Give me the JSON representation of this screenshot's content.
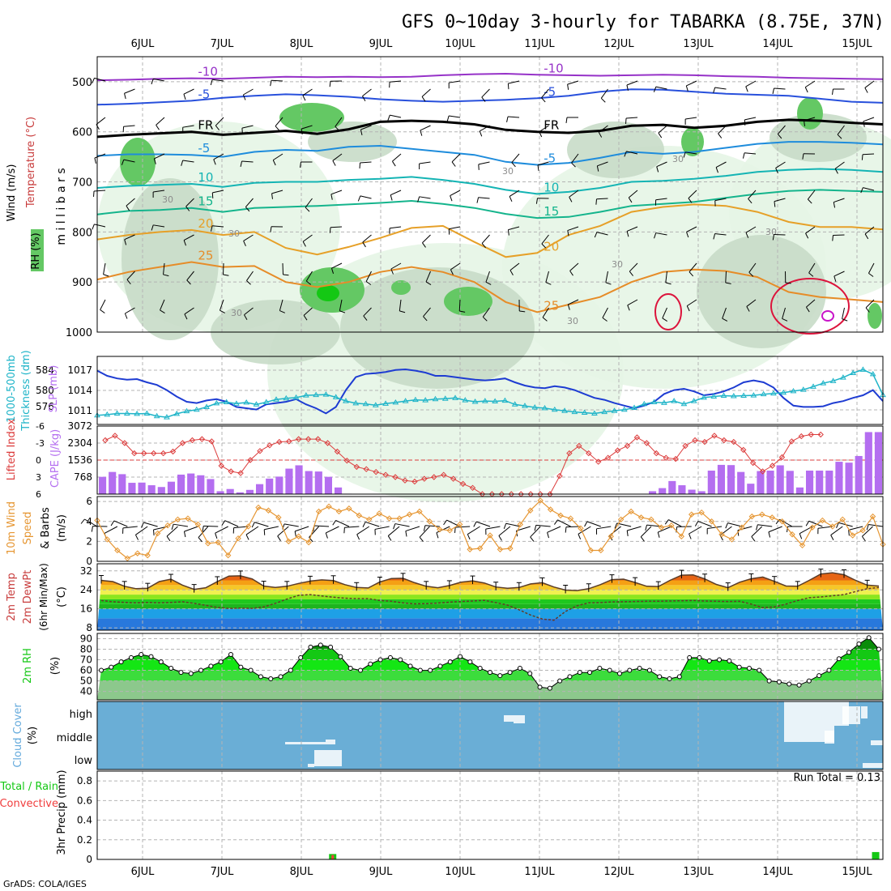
{
  "page": {
    "title": "GFS 0~10day 3-hourly for TABARKA (8.75E, 37N)",
    "footer": "GrADS: COLA/IGES"
  },
  "colors": {
    "grid": "#b4b4b4",
    "rh_light": "#e6f5e6",
    "rh_mid": "#c8dcc8",
    "rh_green": "#64c864",
    "rh_bright": "#14c814",
    "slp": "#1e3cd2",
    "thickness": "#1eb4c8",
    "lifted_index": "#dc3c3c",
    "cape": "#b46ef0",
    "wind10m": "#e69632",
    "rh2m": "#14c814",
    "cloud": "#6aaed6",
    "precip_total": "#14c814",
    "precip_conv": "#f03c3c"
  },
  "chart_data": [
    {
      "type": "contour-timeheight",
      "panel": "upper-air",
      "ylabel_parts": [
        "Wind (m/s)",
        "Temperature (°C)",
        "RH (%)"
      ],
      "yaxis_title": "m i l l i b a r s",
      "y_ticks": [
        500,
        600,
        700,
        800,
        900,
        1000
      ],
      "ylim": [
        1000,
        450
      ],
      "x_dates_top": [
        "6JUL",
        "7JUL",
        "8JUL",
        "9JUL",
        "10JUL",
        "11JUL",
        "12JUL",
        "13JUL",
        "14JUL",
        "15JUL"
      ],
      "temperature_contours": [
        {
          "label": "-10",
          "color": "#9632c8",
          "pressure": [
            497,
            496,
            494,
            493,
            494,
            492,
            490,
            491,
            490,
            491,
            490,
            487,
            485,
            484,
            486,
            487,
            488,
            487,
            486,
            487,
            489,
            490,
            492,
            493,
            494,
            495
          ]
        },
        {
          "label": "-5",
          "color": "#2850dc",
          "pressure": [
            546,
            544,
            541,
            538,
            532,
            528,
            525,
            527,
            530,
            535,
            538,
            540,
            538,
            536,
            533,
            528,
            520,
            515,
            516,
            520,
            524,
            526,
            528,
            534,
            540,
            542
          ]
        },
        {
          "label": "FR",
          "color": "#000000",
          "pressure": [
            610,
            606,
            603,
            600,
            606,
            602,
            598,
            604,
            595,
            580,
            578,
            580,
            585,
            596,
            600,
            602,
            598,
            588,
            586,
            592,
            588,
            580,
            576,
            578,
            582,
            585
          ]
        },
        {
          "label": "-5",
          "color": "#1e8cdc",
          "pressure": [
            648,
            645,
            645,
            646,
            650,
            640,
            636,
            638,
            630,
            628,
            634,
            640,
            646,
            660,
            666,
            662,
            652,
            640,
            644,
            640,
            632,
            624,
            620,
            620,
            622,
            625
          ]
        },
        {
          "label": "10",
          "color": "#14b4b4",
          "pressure": [
            712,
            708,
            706,
            704,
            710,
            702,
            700,
            700,
            696,
            694,
            690,
            696,
            704,
            716,
            724,
            720,
            712,
            700,
            698,
            694,
            688,
            680,
            676,
            674,
            676,
            680
          ]
        },
        {
          "label": "15",
          "color": "#14b48c",
          "pressure": [
            765,
            758,
            756,
            752,
            760,
            752,
            750,
            748,
            745,
            742,
            738,
            744,
            752,
            764,
            772,
            770,
            760,
            748,
            744,
            740,
            732,
            724,
            718,
            716,
            718,
            720
          ]
        },
        {
          "label": "20",
          "color": "#e6a028",
          "pressure": [
            815,
            806,
            800,
            796,
            806,
            800,
            832,
            845,
            830,
            812,
            792,
            788,
            820,
            850,
            842,
            806,
            788,
            760,
            750,
            745,
            748,
            760,
            780,
            790,
            790,
            795
          ]
        },
        {
          "label": "25",
          "color": "#e68c28",
          "pressure": [
            895,
            880,
            870,
            860,
            870,
            868,
            900,
            910,
            900,
            880,
            870,
            880,
            900,
            940,
            960,
            945,
            930,
            900,
            880,
            875,
            878,
            890,
            920,
            930,
            935,
            940
          ]
        }
      ],
      "rh_labels": [
        "30",
        "30",
        "30",
        "30",
        "30",
        "30",
        "30",
        "30"
      ]
    },
    {
      "type": "line",
      "panel": "slp-thickness",
      "ylabel_left": "1000-500mb Thickness (dm)",
      "ylabel_right": "SLP (mb)",
      "left_ticks": [
        "584",
        "580",
        "576"
      ],
      "right_ticks": [
        "1017",
        "1014",
        "1011"
      ],
      "series": [
        {
          "name": "SLP",
          "axis": "right",
          "ylim": [
            1008.5,
            1019
          ],
          "values": [
            1016.8,
            1016.0,
            1015.6,
            1015.4,
            1015.5,
            1015.0,
            1014.6,
            1013.8,
            1012.8,
            1012.0,
            1011.8,
            1012.2,
            1012.4,
            1012.0,
            1011.2,
            1011.0,
            1010.8,
            1011.6,
            1011.8,
            1012.0,
            1012.4,
            1011.6,
            1011.0,
            1010.2,
            1011.2,
            1013.8,
            1015.8,
            1016.3,
            1016.4,
            1016.6,
            1016.9,
            1017.0,
            1016.8,
            1016.5,
            1016.0,
            1016.0,
            1015.8,
            1015.6,
            1015.4,
            1015.3,
            1015.4,
            1015.6,
            1015.0,
            1014.5,
            1014.2,
            1014.1,
            1014.4,
            1014.2,
            1013.8,
            1013.2,
            1012.6,
            1012.3,
            1011.8,
            1011.4,
            1011.0,
            1011.4,
            1012.0,
            1013.2,
            1013.8,
            1014.0,
            1013.6,
            1013.0,
            1013.2,
            1013.6,
            1014.2,
            1015.0,
            1015.3,
            1015.0,
            1014.2,
            1012.6,
            1011.4,
            1011.2,
            1011.2,
            1011.3,
            1011.8,
            1012.1,
            1012.6,
            1013.0,
            1013.8,
            1012.1
          ]
        },
        {
          "name": "Thickness",
          "axis": "left",
          "ylim": [
            571,
            589
          ],
          "values": [
            573.4,
            573.6,
            573.9,
            573.9,
            573.8,
            573.9,
            573.2,
            572.9,
            573.8,
            574.5,
            574.9,
            575.6,
            576.6,
            576.9,
            576.5,
            576.8,
            576.3,
            576.9,
            577.6,
            577.9,
            578.1,
            578.7,
            578.8,
            578.9,
            578.2,
            577.2,
            576.6,
            576.4,
            576.1,
            576.5,
            576.8,
            577.2,
            577.5,
            577.4,
            577.7,
            577.8,
            578.0,
            577.4,
            577.0,
            577.2,
            577.1,
            577.3,
            576.3,
            575.9,
            575.5,
            575.3,
            574.9,
            574.6,
            574.3,
            574.1,
            573.9,
            574.3,
            574.6,
            574.9,
            575.4,
            576.4,
            576.9,
            576.7,
            577.2,
            576.4,
            577.2,
            578.1,
            578.4,
            578.6,
            578.5,
            578.6,
            578.7,
            579.0,
            579.2,
            579.4,
            579.8,
            580.2,
            581.0,
            581.9,
            582.5,
            583.4,
            584.6,
            585.5,
            584.3,
            578.8
          ]
        }
      ]
    },
    {
      "type": "bar+line",
      "panel": "lifted-index-cape",
      "ylabel_left": "Lifted Index",
      "ylabel_right": "CAPE (J/kg)",
      "left_ticks": [
        "-6",
        "-3",
        "0",
        "3",
        "6"
      ],
      "right_ticks": [
        "3072",
        "2304",
        "1536",
        "768"
      ],
      "lifted_index": [
        -3.5,
        -4.3,
        -3.0,
        -1.2,
        -1.2,
        -1.2,
        -1.2,
        -1.5,
        -3.0,
        -3.5,
        -3.7,
        -3.3,
        1.0,
        2.0,
        2.3,
        0.0,
        -1.6,
        -2.6,
        -3.2,
        -3.3,
        -3.7,
        -3.7,
        -3.7,
        -3.0,
        -1.5,
        0.1,
        1.2,
        1.6,
        2.1,
        2.6,
        3.0,
        3.6,
        3.8,
        3.3,
        3.0,
        2.6,
        3.3,
        4.2,
        4.9,
        6.0,
        6.0,
        6.0,
        6.0,
        6.0,
        6.0,
        6.0,
        6.0,
        2.8,
        -1.2,
        -2.5,
        -1.2,
        0.3,
        -0.4,
        -1.7,
        -2.5,
        -4.0,
        -3.0,
        -1.2,
        -0.4,
        -0.2,
        -2.5,
        -3.5,
        -3.2,
        -4.3,
        -3.5,
        -3.2,
        -1.8,
        0.5,
        2.0,
        1.0,
        -0.5,
        -3.3,
        -4.2,
        -4.5,
        -4.5
      ],
      "cape": [
        780,
        1000,
        900,
        510,
        520,
        400,
        320,
        560,
        880,
        930,
        850,
        680,
        130,
        230,
        80,
        190,
        450,
        700,
        790,
        1150,
        1300,
        1040,
        1020,
        780,
        300,
        20,
        0,
        0,
        0,
        0,
        0,
        0,
        0,
        0,
        0,
        0,
        0,
        0,
        0,
        0,
        0,
        0,
        0,
        0,
        0,
        0,
        0,
        0,
        0,
        0,
        0,
        0,
        0,
        0,
        0,
        0,
        130,
        270,
        590,
        400,
        200,
        130,
        1060,
        1320,
        1310,
        1000,
        470,
        1040,
        1060,
        1300,
        1050,
        300,
        1060,
        1060,
        1060,
        1460,
        1420,
        1720,
        2800,
        2800
      ]
    },
    {
      "type": "line",
      "panel": "wind-10m",
      "ylabel": "10m Wind Speed & Barbs (m/s)",
      "ticks": [
        "0",
        "2",
        "4",
        "6"
      ],
      "ylim": [
        0,
        6.5
      ],
      "values": [
        4.1,
        2.2,
        1.1,
        0.3,
        0.8,
        0.6,
        2.8,
        3.6,
        4.2,
        4.3,
        3.7,
        1.8,
        1.9,
        0.6,
        2.3,
        3.5,
        5.4,
        5.1,
        4.4,
        2.0,
        2.5,
        1.9,
        5.0,
        5.5,
        5.0,
        5.3,
        4.6,
        4.2,
        4.8,
        4.3,
        4.3,
        4.7,
        5.0,
        4.0,
        3.2,
        3.1,
        3.7,
        1.2,
        1.3,
        2.6,
        1.2,
        1.3,
        3.7,
        5.1,
        6.1,
        5.2,
        4.6,
        4.3,
        3.3,
        1.1,
        1.1,
        2.5,
        4.2,
        5.0,
        4.4,
        4.2,
        3.4,
        3.6,
        2.5,
        4.7,
        4.9,
        4.0,
        2.7,
        2.2,
        3.4,
        4.5,
        4.7,
        4.4,
        4.0,
        2.7,
        1.6,
        3.4,
        4.1,
        3.5,
        4.2,
        2.6,
        3.1,
        4.5,
        1.7
      ]
    },
    {
      "type": "area",
      "panel": "temp-2m",
      "ylabel": "2m Temp 2m DewPt (6hr Min/Max) (°C)",
      "ticks": [
        "8",
        "16",
        "24",
        "32"
      ],
      "ylim": [
        7,
        35
      ],
      "temperature": [
        28,
        27.5,
        25.5,
        24.5,
        24.7,
        27.5,
        28.5,
        26.0,
        24.2,
        24.9,
        27.5,
        29.8,
        29.9,
        28.6,
        25.6,
        25.0,
        25.5,
        26.7,
        27.7,
        28.2,
        27.9,
        26.2,
        25.0,
        24.8,
        27.3,
        28.8,
        28.9,
        27.0,
        25.5,
        24.9,
        25.8,
        27.2,
        27.8,
        26.9,
        25.2,
        24.7,
        25.0,
        26.5,
        27.0,
        25.2,
        23.9,
        23.7,
        24.5,
        26.2,
        28.3,
        28.5,
        27.1,
        25.5,
        25.4,
        28.0,
        30.2,
        30.3,
        28.6,
        26.3,
        24.9,
        27.2,
        28.7,
        29.4,
        27.6,
        25.6,
        25.5,
        28.0,
        30.7,
        31.2,
        30.4,
        28.0,
        26.0,
        25.6
      ],
      "dewpoint": [
        19.5,
        19.0,
        18.7,
        18.5,
        18.7,
        18.5,
        18.7,
        19.0,
        18.3,
        17.5,
        16.6,
        16.2,
        16.3,
        16.2,
        16.8,
        18.3,
        20.1,
        21.7,
        22.0,
        21.4,
        20.9,
        20.5,
        20.3,
        20.3,
        19.5,
        19.2,
        18.5,
        18.1,
        18.2,
        18.4,
        18.8,
        19.1,
        19.3,
        19.6,
        18.6,
        17.6,
        15.6,
        13.4,
        11.7,
        11.2,
        14.9,
        17.3,
        18.5,
        18.6,
        18.9,
        19.0,
        19.1,
        19.2,
        19.2,
        19.3,
        19.4,
        19.5,
        19.3,
        19.2,
        19.1,
        19.2,
        18.0,
        16.5,
        16.8,
        18.0,
        19.5,
        20.7,
        21.0,
        21.5,
        22.0,
        23.3,
        24.5,
        25.0
      ]
    },
    {
      "type": "area",
      "panel": "rh-2m",
      "ylabel": "2m RH (%)",
      "ticks": [
        "40",
        "50",
        "60",
        "70",
        "80",
        "90"
      ],
      "ylim": [
        32,
        95
      ],
      "values": [
        60,
        63,
        68,
        72,
        75,
        73,
        68,
        62,
        58,
        57,
        60,
        64,
        68,
        75,
        63,
        60,
        54,
        52,
        54,
        60,
        72,
        82,
        84,
        82,
        73,
        62,
        60,
        66,
        70,
        72,
        70,
        64,
        60,
        60,
        64,
        68,
        73,
        68,
        62,
        58,
        55,
        58,
        62,
        57,
        44,
        43,
        50,
        54,
        58,
        58,
        62,
        60,
        57,
        60,
        62,
        60,
        54,
        52,
        54,
        72,
        72,
        69,
        70,
        69,
        63,
        62,
        60,
        50,
        49,
        47,
        46,
        50,
        55,
        60,
        71,
        77,
        85,
        91,
        80
      ]
    },
    {
      "type": "heatmap",
      "panel": "cloud-cover",
      "ylabel": "Cloud Cover (%)",
      "level_labels": [
        "high",
        "middle",
        "low"
      ]
    },
    {
      "type": "bar",
      "panel": "precip",
      "ylabel": "3hr Precip (mm)",
      "legend": [
        "Total / Rain",
        "Convective"
      ],
      "ticks": [
        "0",
        "0.2",
        "0.4",
        "0.6",
        "0.8"
      ],
      "ylim": [
        0,
        0.9
      ],
      "run_total": "Run Total = 0.13",
      "bars": [
        {
          "date_index": 2.39,
          "total": 0.055,
          "convective": 0.045
        },
        {
          "date_index": 9.23,
          "total": 0.075,
          "convective": 0.0
        }
      ]
    }
  ],
  "x_dates_bottom": [
    "6JUL",
    "7JUL",
    "8JUL",
    "9JUL",
    "10JUL",
    "11JUL",
    "12JUL",
    "13JUL",
    "14JUL",
    "15JUL"
  ]
}
